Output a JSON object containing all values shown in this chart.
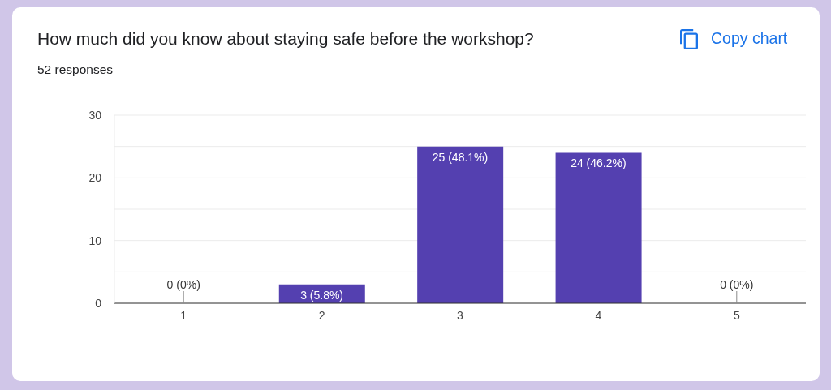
{
  "chart_data": {
    "type": "bar",
    "title": "How much did you know about staying safe before the workshop?",
    "subtitle": "52 responses",
    "annotations": [
      "Copy chart"
    ],
    "categories": [
      "1",
      "2",
      "3",
      "4",
      "5"
    ],
    "values": [
      0,
      3,
      25,
      24,
      0
    ],
    "value_labels": [
      "0 (0%)",
      "3 (5.8%)",
      "25 (48.1%)",
      "24 (46.2%)",
      "0 (0%)"
    ],
    "color": "#5440b0",
    "ylim": [
      0,
      30
    ],
    "yticks": [
      0,
      {
        "value": 5,
        "label": null
      },
      10,
      {
        "value": 15,
        "label": null
      },
      20,
      {
        "value": 25,
        "label": null
      },
      30
    ],
    "grid": "y"
  }
}
